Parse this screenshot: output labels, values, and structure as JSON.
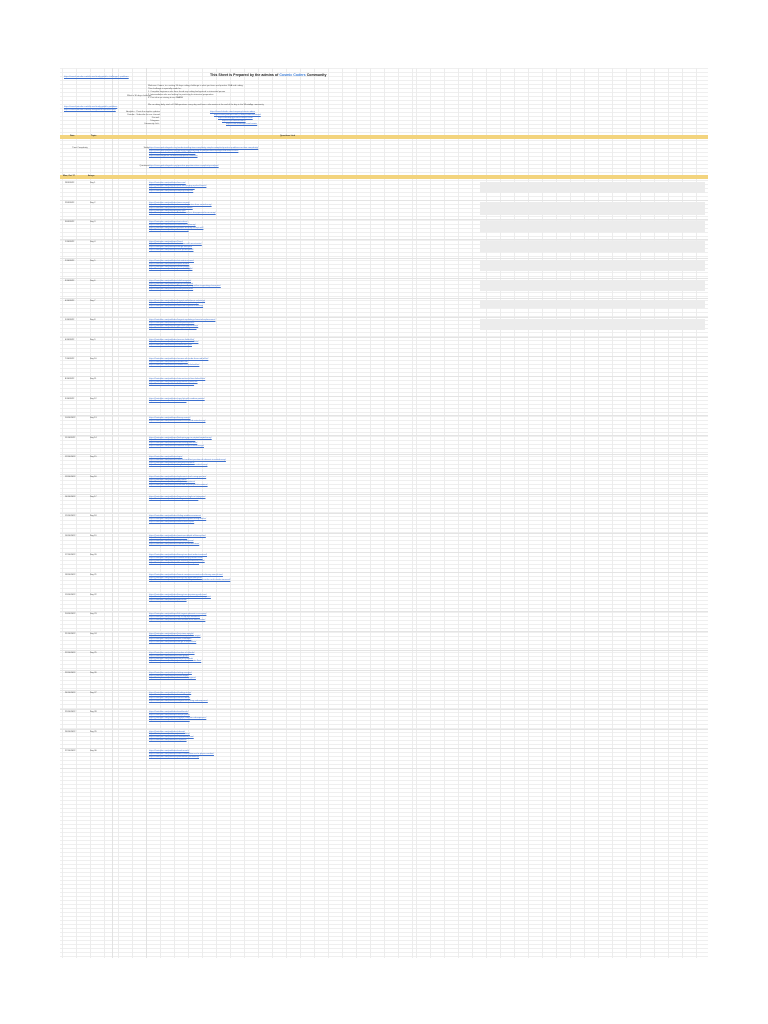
{
  "header": {
    "title_prefix": "This Sheet is Prepared by the admins of",
    "title_accent": "Cosmic Coders",
    "title_suffix": "Community",
    "top_link": "https://www.leetcode.com/discuss/study-guide/c-challenge-1-problems",
    "side_link_1": "https://www.leetcode.com/discuss/study-guide/c-problems",
    "side_link_2": "https://www.leetcode.com/discuss/general-discussion/cp"
  },
  "intro": {
    "label": "What is 30 days challenge",
    "lines": [
      "Welcome Coders, to a exiting 30 days coding challenge in what you learn and practise DSA and coding.",
      "This challenge is specially made for :",
      "1. Complete beginners who have faced any coding background or interested person",
      "2. Intermediates who are looking for practicing for interview preparation",
      "3. Pros who are aiming to ace FAANG",
      "We are doing daily stack of DSA questions every day and have a discussion at the end of the day in the WhatsApp community"
    ]
  },
  "contacts": {
    "labels": [
      "Analytics : Posts the regular updates",
      "Youtube : Subscribe for our channel",
      "Discord :",
      "Telegram :",
      "Community Link :"
    ],
    "links": [
      "https://www.linkedin.com/company/cosmiccoders",
      "https://www.youtube.com/@cosmiccoders/featured",
      "https://discord.gg/cosmiccoders-invite",
      "https://t.me/cosmiccoders",
      "https://chat.whatsapp.com/cosmic"
    ]
  },
  "section_header": {
    "date": "Date",
    "topic": "Topic",
    "questions": "Questions Link"
  },
  "prereq": {
    "label": "Time Complexity",
    "rows": [
      {
        "label": "Study",
        "links": [
          "https://www.geeksforgeeks.org/understanding-time-complexity-simple-examples/practice-problems-on-time-complexity/",
          "https://www.geeksforgeeks.org/analysis-algorithms-big-o-analysis/best-average-and-worst-cases/",
          "https://www.youtube.com/watch?v=mV3wrLBbuuE",
          "https://www.programiz.com/dsa/asymptotic-notations"
        ]
      },
      {
        "label": "Questions",
        "links": [
          "https://www.geeksforgeeks.org/practice-questions-time-complexity-analysis/"
        ]
      }
    ]
  },
  "schedule_header": {
    "date": "Mon, Oct 17",
    "topic": "Arrays"
  },
  "days": [
    {
      "date": "28/9/2022",
      "day": "Day 1",
      "links": [
        "https://leetcode.com/problems/two-sum/",
        "https://leetcode.com/problems/best-time-to-buy-and-sell-stock/",
        "https://leetcode.com/problems/contains-duplicate/",
        "https://leetcode.com/problems/majority-element/"
      ]
    },
    {
      "date": "29/9/2022",
      "day": "Day 2",
      "links": [
        "https://leetcode.com/problems/move-zeroes/",
        "https://leetcode.com/problems/remove-duplicates-from-sorted-array/",
        "https://leetcode.com/problems/missing-number/",
        "https://leetcode.com/problems/plus-one/",
        "https://leetcode.com/problems/find-all-numbers-disappeared-in-an-array/"
      ]
    },
    {
      "date": "30/9/2022",
      "day": "Day 3",
      "links": [
        "https://leetcode.com/problems/sort-colors/",
        "https://leetcode.com/problems/maximum-subarray/",
        "https://leetcode.com/problems/product-of-array-except-self/",
        "https://leetcode.com/problems/rotate-array/"
      ]
    },
    {
      "date": "1/10/2022",
      "day": "Day 4",
      "links": [
        "https://leetcode.com/problems/3sum/",
        "https://leetcode.com/problems/container-with-most-water/",
        "https://leetcode.com/problems/merge-intervals/",
        "https://leetcode.com/problems/next-permutation/"
      ]
    },
    {
      "date": "2/10/2022",
      "day": "Day 5",
      "links": [
        "https://leetcode.com/problems/set-matrix-zeroes/",
        "https://leetcode.com/problems/spiral-matrix/",
        "https://leetcode.com/problems/rotate-image/",
        "https://leetcode.com/problems/pascals-triangle/"
      ]
    },
    {
      "date": "3/10/2022",
      "day": "Day 6",
      "links": [
        "https://leetcode.com/problems/valid-anagram/",
        "https://leetcode.com/problems/group-anagrams/",
        "https://leetcode.com/problems/longest-substring-without-repeating-characters/",
        "https://leetcode.com/problems/valid-palindrome/"
      ]
    },
    {
      "date": "4/10/2022",
      "day": "Day 7",
      "links": [
        "https://leetcode.com/problems/longest-palindromic-substring/",
        "https://leetcode.com/problems/palindromic-substrings/",
        "https://leetcode.com/problems/minimum-window-substring/"
      ]
    },
    {
      "date": "5/10/2022",
      "day": "Day 8",
      "links": [
        "https://leetcode.com/problems/longest-repeating-character-replacement/",
        "https://leetcode.com/problems/valid-parentheses/",
        "https://leetcode.com/problems/generate-parentheses/",
        "https://leetcode.com/problems/string-to-integer-atoi/"
      ]
    },
    {
      "date": "6/10/2022",
      "day": "Day 9",
      "links": [
        "https://leetcode.com/problems/reverse-linked-list/",
        "https://leetcode.com/problems/merge-two-sorted-lists/",
        "https://leetcode.com/problems/linked-list-cycle/"
      ]
    },
    {
      "date": "7/10/2022",
      "day": "Day 10",
      "links": [
        "https://leetcode.com/problems/remove-nth-node-from-end-of-list/",
        "https://leetcode.com/problems/reorder-list/",
        "https://leetcode.com/problems/middle-of-the-linked-list/"
      ]
    },
    {
      "date": "8/10/2022",
      "day": "Day 11",
      "links": [
        "https://leetcode.com/problems/intersection-of-two-linked-lists/",
        "https://leetcode.com/problems/palindrome-linked-list/",
        "https://leetcode.com/problems/add-two-numbers/"
      ]
    },
    {
      "date": "9/10/2022",
      "day": "Day 12",
      "links": [
        "https://leetcode.com/problems/copy-list-with-random-pointer/",
        "https://leetcode.com/problems/rotate-list/"
      ]
    },
    {
      "date": "10/10/2022",
      "day": "Day 13",
      "links": [
        "https://leetcode.com/problems/binary-search/",
        "https://leetcode.com/problems/search-in-rotated-sorted-array/"
      ]
    },
    {
      "date": "11/10/2022",
      "day": "Day 14",
      "links": [
        "https://leetcode.com/problems/find-minimum-in-rotated-sorted-array/",
        "https://leetcode.com/problems/search-a-2d-matrix/",
        "https://leetcode.com/problems/koko-eating-bananas/",
        "https://leetcode.com/problems/median-of-two-sorted-arrays/"
      ]
    },
    {
      "date": "12/10/2022",
      "day": "Day 15",
      "links": [
        "https://leetcode.com/problems/sqrtx/",
        "https://leetcode.com/problems/find-first-and-last-position-of-element-in-sorted-array/",
        "https://leetcode.com/problems/find-peak-element/",
        "https://leetcode.com/problems/single-element-in-a-sorted-array/"
      ]
    },
    {
      "date": "13/10/2022",
      "day": "Day 16",
      "links": [
        "https://leetcode.com/problems/implement-stack-using-queues/",
        "https://leetcode.com/problems/min-stack/",
        "https://leetcode.com/problems/daily-temperatures/",
        "https://leetcode.com/problems/evaluate-reverse-polish-notation/"
      ]
    },
    {
      "date": "14/10/2022",
      "day": "Day 17",
      "links": [
        "https://leetcode.com/problems/largest-rectangle-in-histogram/",
        "https://leetcode.com/problems/next-greater-element-i/"
      ]
    },
    {
      "date": "15/10/2022",
      "day": "Day 18",
      "links": [
        "https://leetcode.com/problems/sliding-window-maximum/",
        "https://leetcode.com/problems/implement-queue-using-stacks/",
        "https://leetcode.com/problems/online-stock-span/"
      ]
    },
    {
      "date": "16/10/2022",
      "day": "Day 19",
      "links": [
        "https://leetcode.com/problems/maximum-depth-of-binary-tree/",
        "https://leetcode.com/problems/same-tree/",
        "https://leetcode.com/problems/invert-binary-tree/",
        "https://leetcode.com/problems/subtree-of-another-tree/"
      ]
    },
    {
      "date": "17/10/2022",
      "day": "Day 20",
      "links": [
        "https://leetcode.com/problems/binary-tree-level-order-traversal/",
        "https://leetcode.com/problems/validate-binary-search-tree/",
        "https://leetcode.com/problems/kth-smallest-element-in-a-bst/",
        "https://leetcode.com/problems/diameter-of-binary-tree/"
      ]
    },
    {
      "date": "18/10/2022",
      "day": "Day 21",
      "links": [
        "https://leetcode.com/problems/lowest-common-ancestor-of-a-binary-search-tree/",
        "https://leetcode.com/problems/binary-tree-right-side-view/",
        "https://leetcode.com/problems/construct-binary-tree-from-preorder-and-inorder-traversal/"
      ]
    },
    {
      "date": "19/10/2022",
      "day": "Day 22",
      "links": [
        "https://leetcode.com/problems/binary-tree-maximum-path-sum/",
        "https://leetcode.com/problems/serialize-and-deserialize-binary-tree/",
        "https://leetcode.com/problems/path-sum/"
      ]
    },
    {
      "date": "20/10/2022",
      "day": "Day 23",
      "links": [
        "https://leetcode.com/problems/kth-largest-element-in-an-array/",
        "https://leetcode.com/problems/top-k-frequent-elements/",
        "https://leetcode.com/problems/find-median-from-data-stream/"
      ]
    },
    {
      "date": "21/10/2022",
      "day": "Day 24",
      "links": [
        "https://leetcode.com/problems/last-stone-weight/",
        "https://leetcode.com/problems/k-closest-points-to-origin/",
        "https://leetcode.com/problems/task-scheduler/",
        "https://leetcode.com/problems/merge-k-sorted-lists/"
      ]
    },
    {
      "date": "22/10/2022",
      "day": "Day 25",
      "links": [
        "https://leetcode.com/problems/number-of-islands/",
        "https://leetcode.com/problems/clone-graph/",
        "https://leetcode.com/problems/course-schedule/",
        "https://leetcode.com/problems/pacific-atlantic-water-flow/"
      ]
    },
    {
      "date": "23/10/2022",
      "day": "Day 26",
      "links": [
        "https://leetcode.com/problems/rotting-oranges/",
        "https://leetcode.com/problems/word-ladder/",
        "https://leetcode.com/problems/surrounded-regions/"
      ]
    },
    {
      "date": "24/10/2022",
      "day": "Day 27",
      "links": [
        "https://leetcode.com/problems/climbing-stairs/",
        "https://leetcode.com/problems/coin-change/",
        "https://leetcode.com/problems/house-robber/",
        "https://leetcode.com/problems/longest-increasing-subsequence/"
      ]
    },
    {
      "date": "25/10/2022",
      "day": "Day 28",
      "links": [
        "https://leetcode.com/problems/word-break/",
        "https://leetcode.com/problems/unique-paths/",
        "https://leetcode.com/problems/longest-common-subsequence/",
        "https://leetcode.com/problems/edit-distance/"
      ]
    },
    {
      "date": "26/10/2022",
      "day": "Day 29",
      "links": [
        "https://leetcode.com/problems/subsets/",
        "https://leetcode.com/problems/permutations/",
        "https://leetcode.com/problems/combination-sum/",
        "https://leetcode.com/problems/n-queens/"
      ]
    },
    {
      "date": "27/10/2022",
      "day": "Day 30",
      "links": [
        "https://leetcode.com/problems/word-search/",
        "https://leetcode.com/problems/letter-combinations-of-a-phone-number/",
        "https://leetcode.com/problems/palindrome-partitioning/"
      ]
    }
  ]
}
